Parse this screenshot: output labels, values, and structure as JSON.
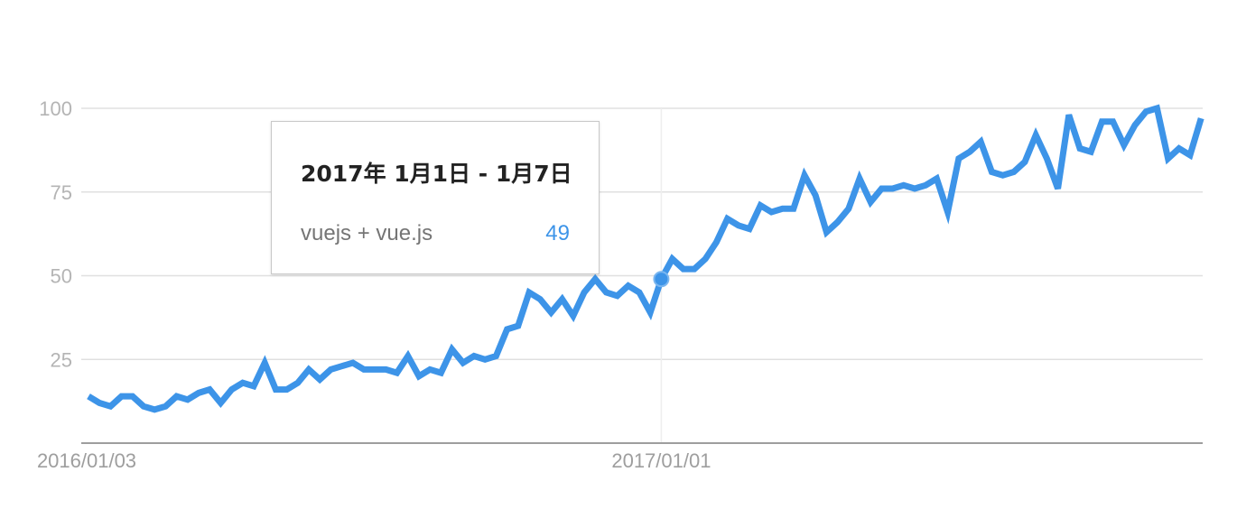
{
  "chart_data": {
    "type": "line",
    "title": "",
    "xlabel": "",
    "ylabel": "",
    "ylim": [
      0,
      100
    ],
    "y_ticks": [
      "25",
      "50",
      "75",
      "100"
    ],
    "x_tick_labels": [
      "2016/01/03",
      "2017/01/01"
    ],
    "x_start": "2016/01/03",
    "x_step": "1 week",
    "grid": true,
    "legend": "none",
    "series": [
      {
        "name": "vuejs + vue.js",
        "color": "#3d94e8",
        "values": [
          14,
          12,
          11,
          14,
          14,
          11,
          10,
          11,
          14,
          13,
          15,
          16,
          12,
          16,
          18,
          17,
          24,
          16,
          16,
          18,
          22,
          19,
          22,
          23,
          24,
          22,
          22,
          22,
          21,
          26,
          20,
          22,
          21,
          28,
          24,
          26,
          25,
          26,
          34,
          35,
          45,
          43,
          39,
          43,
          38,
          45,
          49,
          45,
          44,
          47,
          45,
          39,
          49,
          55,
          52,
          52,
          55,
          60,
          67,
          65,
          64,
          71,
          69,
          70,
          70,
          80,
          74,
          63,
          66,
          70,
          79,
          72,
          76,
          76,
          77,
          76,
          77,
          79,
          69,
          85,
          87,
          90,
          81,
          80,
          81,
          84,
          92,
          85,
          76,
          98,
          88,
          87,
          96,
          96,
          89,
          95,
          99,
          100,
          85,
          88,
          86,
          97
        ]
      }
    ],
    "highlight": {
      "index": 52,
      "date": "2017年 1月1日 - 1月7日",
      "series_label": "vuejs + vue.js",
      "value": "49",
      "value_color": "#3d94e8"
    }
  }
}
